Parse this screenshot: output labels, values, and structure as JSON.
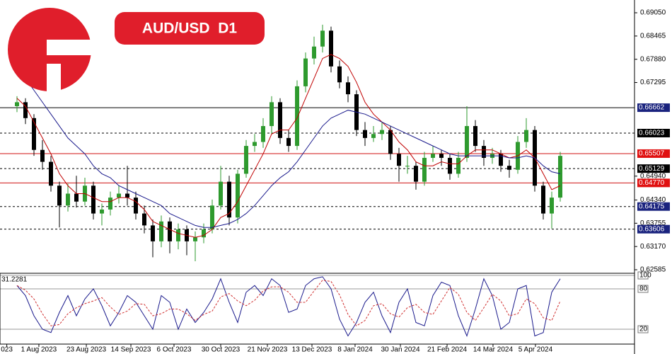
{
  "chart_data": [
    {
      "type": "candlestick",
      "title": "AUD/USD  D1",
      "open": [
        0.667,
        0.668,
        0.664,
        0.656,
        0.653,
        0.647,
        0.642,
        0.645,
        0.643,
        0.647,
        0.64,
        0.641,
        0.644,
        0.645,
        0.644,
        0.64,
        0.637,
        0.633,
        0.638,
        0.633,
        0.636,
        0.633,
        0.634,
        0.636,
        0.642,
        0.648,
        0.639,
        0.65,
        0.657,
        0.658,
        0.662,
        0.668,
        0.659,
        0.657,
        0.672,
        0.679,
        0.682,
        0.686,
        0.677,
        0.673,
        0.67,
        0.661,
        0.659,
        0.66,
        0.661,
        0.655,
        0.652,
        0.652,
        0.648,
        0.654,
        0.655,
        0.654,
        0.65,
        0.654,
        0.662,
        0.657,
        0.654,
        0.655,
        0.652,
        0.651,
        0.658,
        0.661,
        0.647,
        0.64,
        0.644
      ],
      "high": [
        0.6695,
        0.669,
        0.665,
        0.6585,
        0.6545,
        0.648,
        0.6475,
        0.6495,
        0.649,
        0.648,
        0.6425,
        0.6455,
        0.647,
        0.652,
        0.6455,
        0.642,
        0.6385,
        0.6395,
        0.639,
        0.6375,
        0.637,
        0.6355,
        0.6375,
        0.6435,
        0.652,
        0.6495,
        0.651,
        0.6585,
        0.66,
        0.664,
        0.6695,
        0.669,
        0.661,
        0.6735,
        0.6805,
        0.6845,
        0.6875,
        0.687,
        0.6785,
        0.6745,
        0.671,
        0.663,
        0.662,
        0.663,
        0.662,
        0.6565,
        0.6545,
        0.653,
        0.6555,
        0.657,
        0.656,
        0.655,
        0.6555,
        0.667,
        0.6635,
        0.6585,
        0.6565,
        0.656,
        0.6535,
        0.6595,
        0.664,
        0.662,
        0.648,
        0.6455,
        0.6555
      ],
      "low": [
        0.6655,
        0.6625,
        0.6545,
        0.651,
        0.6455,
        0.6365,
        0.6405,
        0.6415,
        0.642,
        0.6385,
        0.637,
        0.6395,
        0.6425,
        0.642,
        0.6385,
        0.635,
        0.629,
        0.6315,
        0.63,
        0.631,
        0.6295,
        0.628,
        0.6325,
        0.635,
        0.641,
        0.637,
        0.6375,
        0.649,
        0.6555,
        0.6565,
        0.66,
        0.6575,
        0.6555,
        0.656,
        0.6705,
        0.6775,
        0.6805,
        0.6755,
        0.6715,
        0.668,
        0.6595,
        0.657,
        0.658,
        0.6585,
        0.6535,
        0.648,
        0.65,
        0.646,
        0.647,
        0.653,
        0.652,
        0.6485,
        0.649,
        0.653,
        0.6555,
        0.652,
        0.6525,
        0.6505,
        0.649,
        0.65,
        0.6565,
        0.6455,
        0.6385,
        0.6362,
        0.643
      ],
      "close": [
        0.668,
        0.664,
        0.656,
        0.653,
        0.647,
        0.642,
        0.645,
        0.643,
        0.647,
        0.64,
        0.641,
        0.644,
        0.645,
        0.644,
        0.64,
        0.637,
        0.633,
        0.638,
        0.633,
        0.636,
        0.633,
        0.634,
        0.636,
        0.642,
        0.648,
        0.639,
        0.65,
        0.657,
        0.658,
        0.662,
        0.668,
        0.659,
        0.657,
        0.672,
        0.679,
        0.682,
        0.686,
        0.677,
        0.673,
        0.67,
        0.661,
        0.659,
        0.66,
        0.661,
        0.655,
        0.652,
        0.652,
        0.648,
        0.654,
        0.655,
        0.654,
        0.65,
        0.654,
        0.662,
        0.657,
        0.654,
        0.655,
        0.652,
        0.651,
        0.658,
        0.661,
        0.647,
        0.64,
        0.644,
        0.6545
      ],
      "up_color": "#2e9a2e",
      "down_color": "#000000",
      "lines": [
        {
          "color": "#c00000",
          "values": [
            0.669,
            0.667,
            0.663,
            0.659,
            0.655,
            0.65,
            0.647,
            0.645,
            0.645,
            0.644,
            0.643,
            0.643,
            0.644,
            0.644,
            0.643,
            0.641,
            0.638,
            0.637,
            0.636,
            0.635,
            0.6345,
            0.634,
            0.6345,
            0.636,
            0.639,
            0.64,
            0.643,
            0.647,
            0.651,
            0.655,
            0.66,
            0.661,
            0.661,
            0.664,
            0.669,
            0.674,
            0.679,
            0.68,
            0.679,
            0.677,
            0.673,
            0.668,
            0.665,
            0.663,
            0.661,
            0.658,
            0.656,
            0.653,
            0.652,
            0.652,
            0.653,
            0.6525,
            0.6525,
            0.6545,
            0.656,
            0.656,
            0.656,
            0.655,
            0.654,
            0.6545,
            0.656,
            0.654,
            0.65,
            0.646,
            0.647
          ]
        },
        {
          "color": "#1a1a8c",
          "values": [
            0.676,
            0.674,
            0.671,
            0.668,
            0.665,
            0.662,
            0.659,
            0.657,
            0.655,
            0.652,
            0.65,
            0.649,
            0.647,
            0.646,
            0.645,
            0.644,
            0.643,
            0.642,
            0.64,
            0.639,
            0.638,
            0.637,
            0.6365,
            0.6365,
            0.637,
            0.6375,
            0.6385,
            0.64,
            0.642,
            0.6445,
            0.647,
            0.649,
            0.6505,
            0.653,
            0.656,
            0.659,
            0.662,
            0.664,
            0.665,
            0.666,
            0.6655,
            0.665,
            0.664,
            0.663,
            0.662,
            0.661,
            0.66,
            0.659,
            0.658,
            0.657,
            0.656,
            0.655,
            0.6545,
            0.6545,
            0.6545,
            0.6545,
            0.6545,
            0.6545,
            0.654,
            0.654,
            0.6545,
            0.654,
            0.652,
            0.6505,
            0.65
          ]
        }
      ],
      "ylim": [
        0.62514,
        0.69371
      ],
      "yticks": [
        {
          "value": 0.6905,
          "label": "0.69050"
        },
        {
          "value": 0.68465,
          "label": "0.68465"
        },
        {
          "value": 0.6788,
          "label": "0.67880"
        },
        {
          "value": 0.67295,
          "label": "0.67295"
        },
        {
          "value": 0.6494,
          "label": "0.64940"
        },
        {
          "value": 0.6434,
          "label": "0.64340"
        },
        {
          "value": 0.63755,
          "label": "0.63755"
        },
        {
          "value": 0.6317,
          "label": "0.63170"
        },
        {
          "value": 0.62585,
          "label": "0.62585"
        }
      ],
      "levels": [
        {
          "value": 0.66662,
          "label": "0.66662",
          "color": "#000000",
          "dashed": false,
          "box": "#1a237e"
        },
        {
          "value": 0.66023,
          "label": "0.66023",
          "color": "#000000",
          "dashed": true,
          "box": "#000000"
        },
        {
          "value": 0.65507,
          "label": "0.65507",
          "color": "#d01010",
          "dashed": false,
          "box": "#e01010"
        },
        {
          "value": 0.65129,
          "label": "0.65129",
          "color": "#000000",
          "dashed": true,
          "box": "#000000"
        },
        {
          "value": 0.6477,
          "label": "0.64770",
          "color": "#d01010",
          "dashed": false,
          "box": "#e01010"
        },
        {
          "value": 0.64175,
          "label": "0.64175",
          "color": "#000000",
          "dashed": true,
          "box": "#1a237e"
        },
        {
          "value": 0.63606,
          "label": "0.63606",
          "color": "#000000",
          "dashed": true,
          "box": "#1a237e"
        }
      ]
    },
    {
      "type": "line",
      "label": "31.2281",
      "series": [
        {
          "color": "#1a1a8c",
          "dashed": false,
          "values": [
            85,
            70,
            40,
            20,
            15,
            45,
            70,
            40,
            65,
            80,
            55,
            25,
            45,
            70,
            60,
            40,
            20,
            70,
            60,
            20,
            50,
            30,
            45,
            65,
            95,
            60,
            30,
            75,
            85,
            70,
            95,
            85,
            45,
            50,
            85,
            95,
            98,
            80,
            35,
            10,
            30,
            60,
            75,
            40,
            15,
            60,
            80,
            30,
            25,
            70,
            90,
            85,
            40,
            10,
            50,
            95,
            70,
            20,
            30,
            80,
            85,
            10,
            15,
            75,
            95
          ]
        },
        {
          "color": "#d03030",
          "dashed": true,
          "values": [
            85,
            78,
            65,
            43,
            25,
            27,
            43,
            52,
            58,
            62,
            67,
            53,
            42,
            47,
            58,
            57,
            40,
            43,
            50,
            50,
            43,
            33,
            42,
            47,
            68,
            73,
            62,
            55,
            63,
            77,
            83,
            83,
            75,
            60,
            60,
            77,
            93,
            91,
            71,
            42,
            25,
            33,
            55,
            58,
            43,
            38,
            52,
            57,
            45,
            42,
            62,
            82,
            72,
            45,
            33,
            52,
            72,
            62,
            40,
            43,
            65,
            58,
            37,
            33,
            62
          ]
        }
      ],
      "ylim": [
        0,
        100
      ],
      "yticks": [
        100,
        80,
        20
      ],
      "xlim": [
        -2,
        72.75
      ],
      "xticks": [
        {
          "value": -1.2,
          "label": "023"
        },
        {
          "value": 2.58,
          "label": "1 Aug 2023"
        },
        {
          "value": 8.17,
          "label": "23 Aug 2023"
        },
        {
          "value": 13.42,
          "label": "14 Sep 2023"
        },
        {
          "value": 18.5,
          "label": "6 Oct 2023"
        },
        {
          "value": 24,
          "label": "30 Oct 2023"
        },
        {
          "value": 29.5,
          "label": "21 Nov 2023"
        },
        {
          "value": 34.75,
          "label": "13 Dec 2023"
        },
        {
          "value": 39.83,
          "label": "8 Jan 2024"
        },
        {
          "value": 45.17,
          "label": "30 Jan 2024"
        },
        {
          "value": 50.67,
          "label": "21 Feb 2024"
        },
        {
          "value": 56.08,
          "label": "14 Mar 2024"
        },
        {
          "value": 61.08,
          "label": "5 Apr 2024"
        }
      ]
    }
  ]
}
